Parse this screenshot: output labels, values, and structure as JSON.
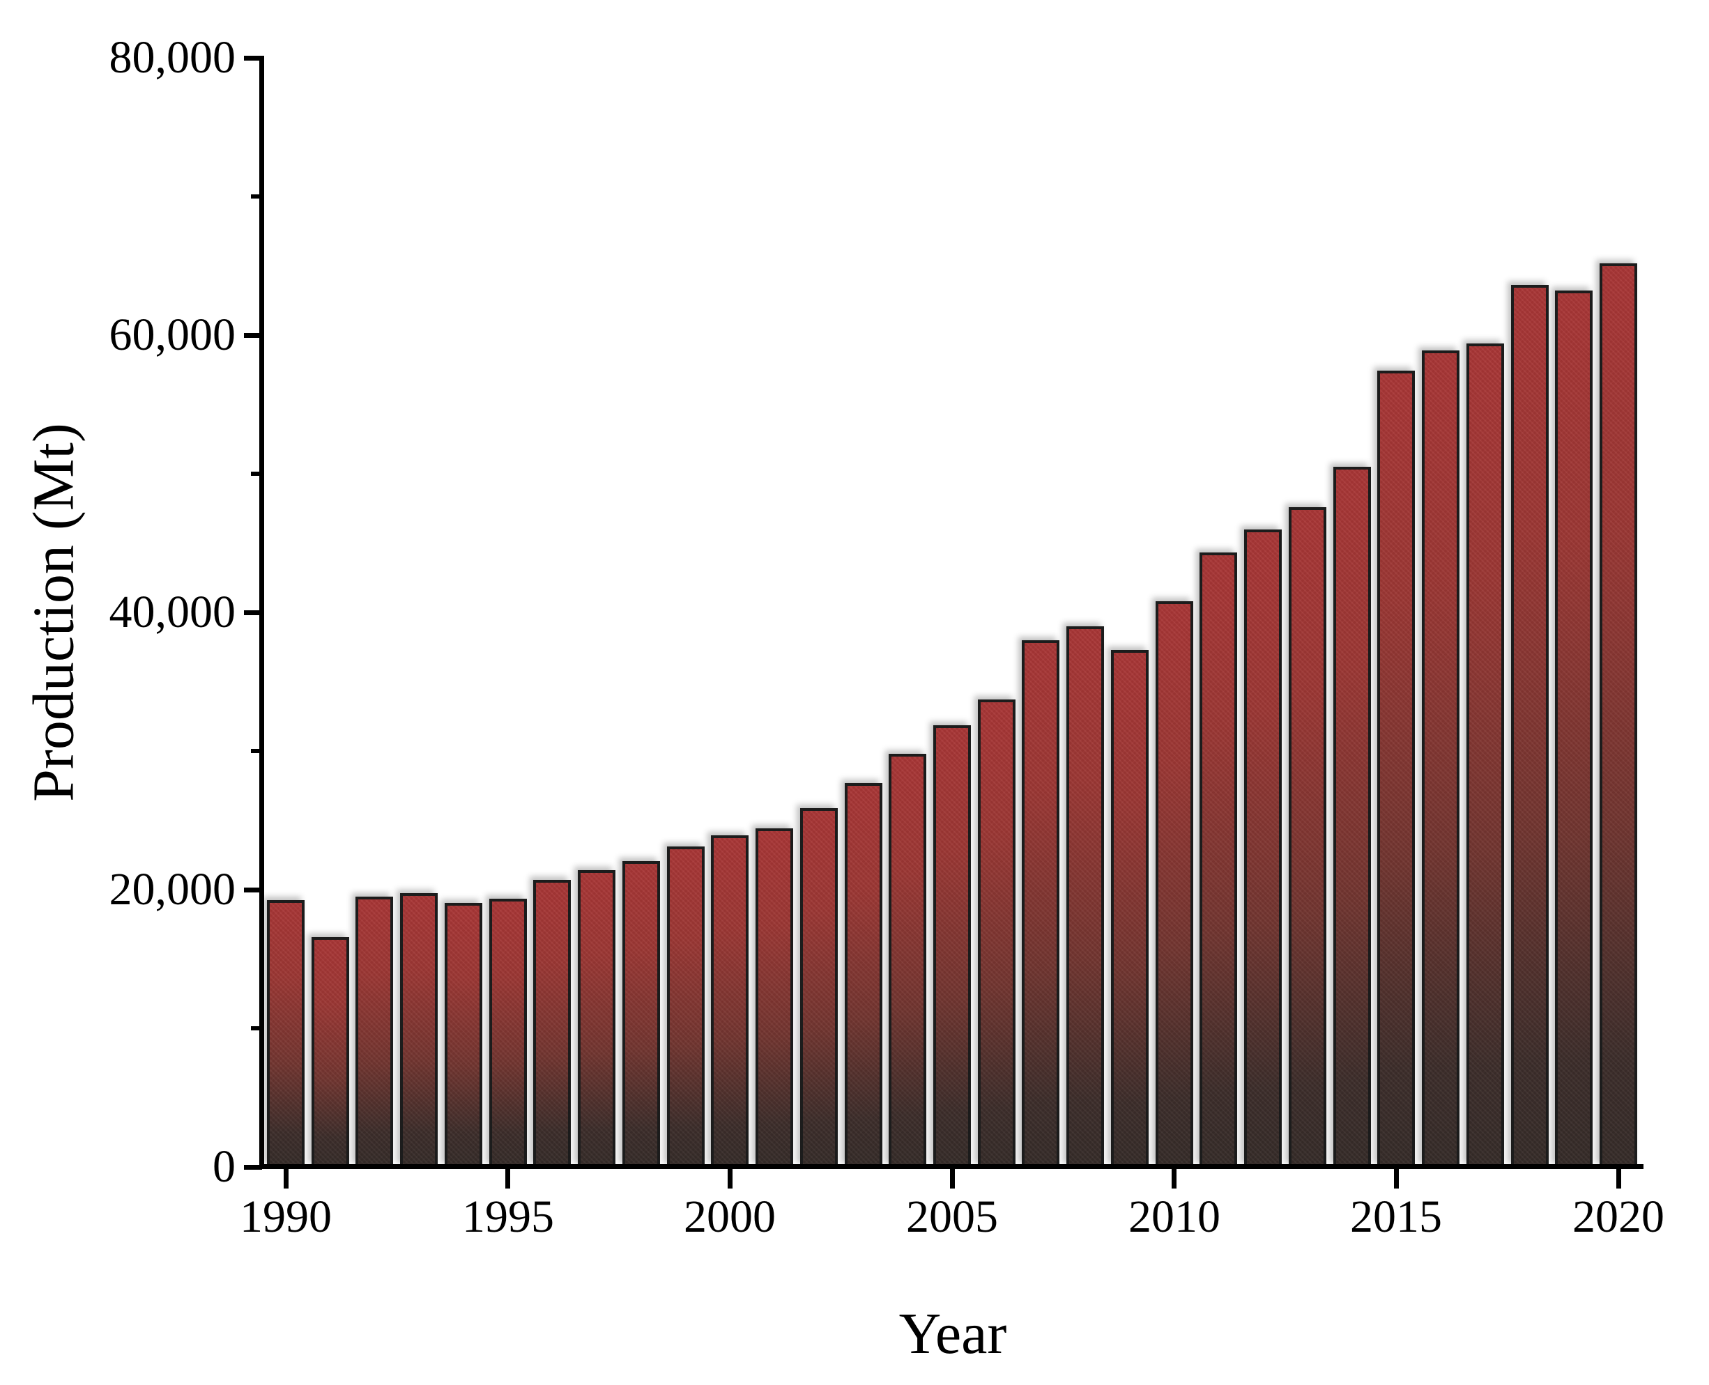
{
  "chart_data": {
    "type": "bar",
    "title": "",
    "xlabel": "Year",
    "ylabel": "Production (Mt)",
    "categories": [
      1990,
      1991,
      1992,
      1993,
      1994,
      1995,
      1996,
      1997,
      1998,
      1999,
      2000,
      2001,
      2002,
      2003,
      2004,
      2005,
      2006,
      2007,
      2008,
      2009,
      2010,
      2011,
      2012,
      2013,
      2014,
      2015,
      2016,
      2017,
      2018,
      2019,
      2020
    ],
    "values": [
      19250,
      16600,
      19500,
      19750,
      19050,
      19350,
      20700,
      21400,
      22050,
      23100,
      23900,
      24400,
      25900,
      27700,
      29800,
      31850,
      33700,
      38000,
      39000,
      37300,
      40800,
      44300,
      46000,
      47600,
      50500,
      57450,
      58900,
      59400,
      63600,
      63200,
      65200
    ],
    "ylim": [
      0,
      80000
    ],
    "y_major_ticks": {
      "values": [
        0,
        20000,
        40000,
        60000,
        80000
      ],
      "labels": [
        "0",
        "20,000",
        "40,000",
        "60,000",
        "80,000"
      ]
    },
    "y_minor_ticks": [
      10000,
      30000,
      50000,
      70000
    ],
    "x_ticks": {
      "values": [
        1990,
        1995,
        2000,
        2005,
        2010,
        2015,
        2020
      ],
      "labels": [
        "1990",
        "1995",
        "2000",
        "2005",
        "2010",
        "2015",
        "2020"
      ]
    },
    "grid": "off",
    "legend": "none",
    "colors": {
      "bar_top": "#a93636",
      "bar_bottom": "#352b28",
      "bar_border": "#1c1c1c",
      "axis": "#000000",
      "text": "#000000"
    }
  }
}
